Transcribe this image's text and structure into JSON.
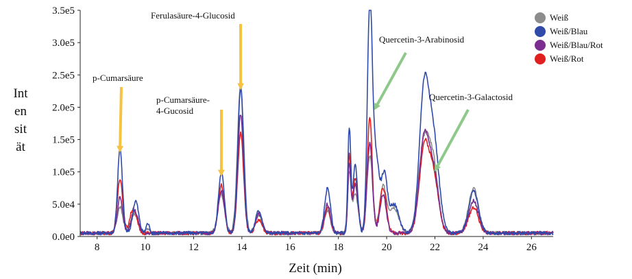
{
  "chart_data": {
    "type": "line",
    "xlabel": "Zeit (min)",
    "ylabel_lines": [
      "Int",
      "en",
      "sit",
      "ät"
    ],
    "xlim": [
      7.3,
      26.9
    ],
    "ylim": [
      0,
      350000
    ],
    "xticks": [
      8,
      10,
      12,
      14,
      16,
      18,
      20,
      22,
      24,
      26
    ],
    "yticks": [
      {
        "value": 0,
        "label": "0.0e0"
      },
      {
        "value": 50000,
        "label": "5.0e4"
      },
      {
        "value": 100000,
        "label": "1.0e5"
      },
      {
        "value": 150000,
        "label": "1.5e5"
      },
      {
        "value": 200000,
        "label": "2.0e5"
      },
      {
        "value": 250000,
        "label": "2.5e5"
      },
      {
        "value": 300000,
        "label": "3.0e5"
      },
      {
        "value": 350000,
        "label": "3.5e5"
      }
    ],
    "legend_position": "top-right",
    "series": [
      {
        "name": "Weiß",
        "color": "#8c8c8c",
        "peaks": [
          [
            8.95,
            40000,
            0.12
          ],
          [
            9.55,
            30000,
            0.15
          ],
          [
            13.15,
            60000,
            0.14
          ],
          [
            13.95,
            230000,
            0.13
          ],
          [
            14.7,
            28000,
            0.14
          ],
          [
            17.55,
            35000,
            0.12
          ],
          [
            18.45,
            90000,
            0.07
          ],
          [
            18.7,
            60000,
            0.12
          ],
          [
            19.3,
            120000,
            0.12
          ],
          [
            19.85,
            70000,
            0.14
          ],
          [
            20.3,
            40000,
            0.2
          ],
          [
            21.55,
            140000,
            0.22
          ],
          [
            21.95,
            95000,
            0.2
          ],
          [
            23.6,
            70000,
            0.2
          ],
          [
            10.1,
            8000,
            0.08
          ]
        ]
      },
      {
        "name": "Weiß/Blau",
        "color": "#2f4aa8",
        "peaks": [
          [
            8.95,
            130000,
            0.1
          ],
          [
            9.6,
            50000,
            0.12
          ],
          [
            10.1,
            15000,
            0.07
          ],
          [
            13.15,
            95000,
            0.12
          ],
          [
            13.95,
            225000,
            0.12
          ],
          [
            14.7,
            35000,
            0.13
          ],
          [
            17.55,
            70000,
            0.12
          ],
          [
            18.45,
            160000,
            0.06
          ],
          [
            18.7,
            105000,
            0.1
          ],
          [
            19.3,
            348000,
            0.1
          ],
          [
            19.55,
            120000,
            0.14
          ],
          [
            19.9,
            85000,
            0.12
          ],
          [
            20.3,
            45000,
            0.2
          ],
          [
            21.55,
            215000,
            0.2
          ],
          [
            21.95,
            140000,
            0.22
          ],
          [
            23.6,
            65000,
            0.2
          ]
        ]
      },
      {
        "name": "Weiß/Blau/Rot",
        "color": "#7b2d90",
        "peaks": [
          [
            8.95,
            55000,
            0.11
          ],
          [
            9.55,
            35000,
            0.14
          ],
          [
            13.15,
            65000,
            0.13
          ],
          [
            13.95,
            185000,
            0.12
          ],
          [
            14.7,
            30000,
            0.14
          ],
          [
            17.55,
            45000,
            0.12
          ],
          [
            18.45,
            105000,
            0.06
          ],
          [
            18.7,
            75000,
            0.11
          ],
          [
            19.3,
            140000,
            0.11
          ],
          [
            19.85,
            60000,
            0.13
          ],
          [
            21.55,
            145000,
            0.2
          ],
          [
            21.95,
            90000,
            0.2
          ],
          [
            23.6,
            50000,
            0.2
          ]
        ]
      },
      {
        "name": "Weiß/Rot",
        "color": "#e02020",
        "peaks": [
          [
            8.95,
            85000,
            0.11
          ],
          [
            9.5,
            38000,
            0.14
          ],
          [
            13.15,
            75000,
            0.12
          ],
          [
            13.95,
            155000,
            0.12
          ],
          [
            14.7,
            20000,
            0.14
          ],
          [
            17.55,
            40000,
            0.12
          ],
          [
            18.45,
            115000,
            0.06
          ],
          [
            18.7,
            85000,
            0.11
          ],
          [
            19.3,
            180000,
            0.1
          ],
          [
            19.85,
            70000,
            0.14
          ],
          [
            21.55,
            130000,
            0.2
          ],
          [
            21.95,
            85000,
            0.2
          ],
          [
            23.6,
            40000,
            0.2
          ]
        ]
      }
    ],
    "annotations": [
      {
        "lines": [
          "p-Cumarsäure"
        ],
        "arrow_color": "#f5c242",
        "arrow_x": 8.95,
        "arrow_y": 135000
      },
      {
        "lines": [
          "Ferulasäure-4-Glucosid"
        ],
        "arrow_color": "#f5c242",
        "arrow_x": 13.95,
        "arrow_y": 232000
      },
      {
        "lines": [
          "p-Cumarsäure-",
          "4-Gucosid"
        ],
        "arrow_color": "#f5c242",
        "arrow_x": 13.15,
        "arrow_y": 98000
      },
      {
        "lines": [
          "Quercetin-3-Arabinosid"
        ],
        "arrow_color": "#8fc98a",
        "arrow_x": 19.55,
        "arrow_y": 200000
      },
      {
        "lines": [
          "Quercetin-3-Galactosid"
        ],
        "arrow_color": "#8fc98a",
        "arrow_x": 22.05,
        "arrow_y": 105000
      }
    ]
  }
}
